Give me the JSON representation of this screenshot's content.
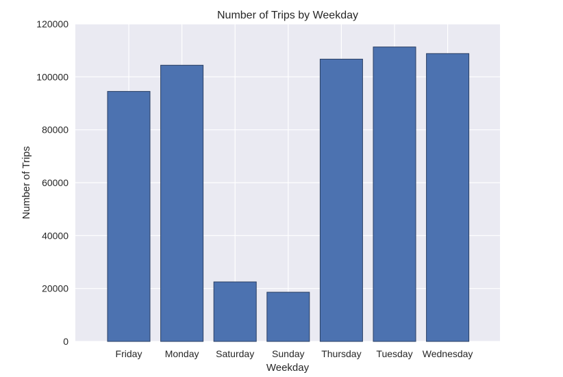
{
  "chart_data": {
    "type": "bar",
    "title": "Number of Trips by Weekday",
    "xlabel": "Weekday",
    "ylabel": "Number of Trips",
    "categories": [
      "Friday",
      "Monday",
      "Saturday",
      "Sunday",
      "Thursday",
      "Tuesday",
      "Wednesday"
    ],
    "values": [
      94500,
      104400,
      22500,
      18600,
      106700,
      111300,
      108800
    ],
    "ylim": [
      0,
      120000
    ],
    "yticks": [
      0,
      20000,
      40000,
      60000,
      80000,
      100000,
      120000
    ],
    "ytick_labels": [
      "0",
      "20000",
      "40000",
      "60000",
      "80000",
      "100000",
      "120000"
    ],
    "grid": true,
    "legend": "none",
    "style": {
      "bar_color": "#4c72b0",
      "bar_edge_color": "#2a3f63",
      "plot_background": "#eaeaf2",
      "grid_color": "#ffffff"
    }
  }
}
